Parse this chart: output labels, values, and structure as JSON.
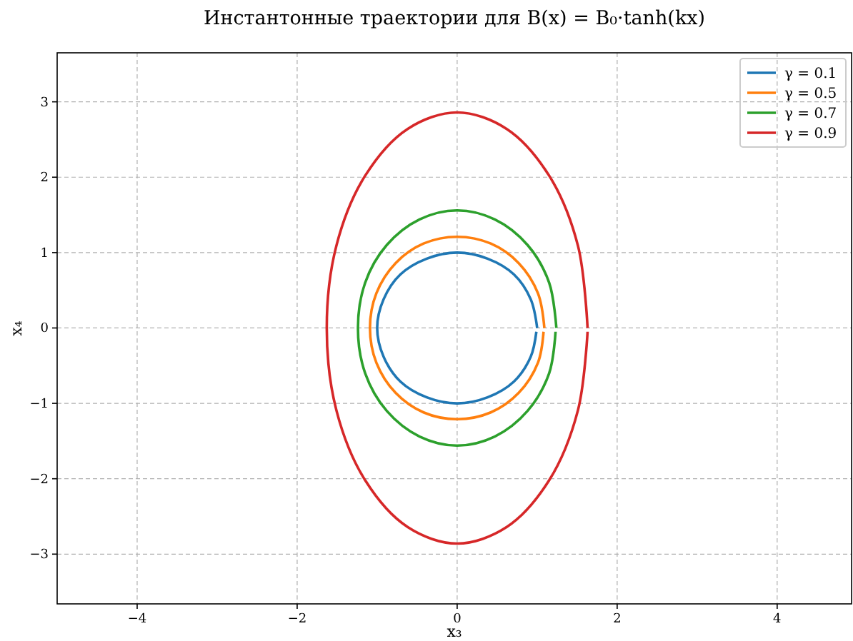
{
  "chart_data": {
    "type": "line",
    "title": "Инстантонные траектории для B(x) = B₀·tanh(kx)",
    "xlabel": "x₃",
    "ylabel": "x₄",
    "xlim": [
      -5,
      4.93
    ],
    "ylim": [
      -3.66,
      3.65
    ],
    "xticks": [
      {
        "value": -4,
        "label": "−4"
      },
      {
        "value": -2,
        "label": "−2"
      },
      0,
      2,
      4
    ],
    "yticks": [
      {
        "value": -3,
        "label": "−3"
      },
      {
        "value": -2,
        "label": "−2"
      },
      {
        "value": -1,
        "label": "−1"
      },
      0,
      1,
      2,
      3
    ],
    "grid": true,
    "legend": "top right",
    "line_style": "solid",
    "marker": "none",
    "series": [
      {
        "name": "γ = 0.1",
        "color": "#1f77b4",
        "x": [
          1,
          0.92,
          0.71,
          0.38,
          0,
          -0.38,
          -0.71,
          -0.92,
          -1,
          -0.92,
          -0.71,
          -0.38,
          0,
          0.38,
          0.71,
          0.92,
          0.99
        ],
        "values": [
          0,
          0.38,
          0.71,
          0.92,
          1,
          0.92,
          0.71,
          0.38,
          0,
          -0.38,
          -0.71,
          -0.92,
          -1,
          -0.92,
          -0.71,
          -0.38,
          -0.05
        ]
      },
      {
        "name": "γ = 0.5",
        "color": "#ff7f0e",
        "x": [
          1.09,
          1.01,
          0.77,
          0.42,
          0,
          -0.42,
          -0.77,
          -1.01,
          -1.09,
          -1.01,
          -0.77,
          -0.42,
          0,
          0.42,
          0.77,
          1.01,
          1.08
        ],
        "values": [
          0,
          0.46,
          0.86,
          1.12,
          1.21,
          1.12,
          0.86,
          0.46,
          0,
          -0.46,
          -0.86,
          -1.12,
          -1.21,
          -1.12,
          -0.86,
          -0.46,
          -0.05
        ]
      },
      {
        "name": "γ = 0.7",
        "color": "#2ca02c",
        "x": [
          1.24,
          1.15,
          0.88,
          0.47,
          0,
          -0.47,
          -0.88,
          -1.15,
          -1.24,
          -1.15,
          -0.88,
          -0.47,
          0,
          0.47,
          0.88,
          1.15,
          1.23
        ],
        "values": [
          0,
          0.6,
          1.1,
          1.44,
          1.56,
          1.44,
          1.1,
          0.6,
          0,
          -0.6,
          -1.1,
          -1.44,
          -1.56,
          -1.44,
          -1.1,
          -0.6,
          -0.05
        ]
      },
      {
        "name": "γ = 0.9",
        "color": "#d62728",
        "x": [
          1.63,
          1.51,
          1.15,
          0.62,
          0,
          -0.62,
          -1.15,
          -1.51,
          -1.63,
          -1.51,
          -1.15,
          -0.62,
          0,
          0.62,
          1.15,
          1.51,
          1.63
        ],
        "values": [
          0,
          1.09,
          2.02,
          2.64,
          2.86,
          2.64,
          2.02,
          1.09,
          0,
          -1.09,
          -2.02,
          -2.64,
          -2.86,
          -2.64,
          -2.02,
          -1.09,
          -0.05
        ]
      }
    ]
  }
}
